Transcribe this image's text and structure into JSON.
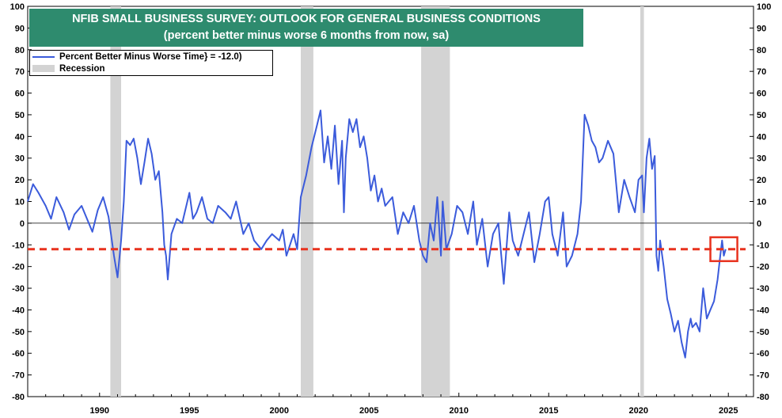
{
  "chart_data": {
    "type": "line",
    "title": "NFIB SMALL BUSINESS SURVEY: OUTLOOK FOR GENERAL BUSINESS CONDITIONS",
    "subtitle": "(percent better minus worse 6 months from now, sa)",
    "xlabel": "",
    "ylabel": "",
    "xlim": [
      1986,
      2026.4
    ],
    "ylim": [
      -80,
      100
    ],
    "y_ticks": [
      100,
      90,
      80,
      70,
      60,
      50,
      40,
      30,
      20,
      10,
      0,
      -10,
      -20,
      -30,
      -40,
      -50,
      -60,
      -70,
      -80
    ],
    "x_ticks": [
      1990,
      1995,
      2000,
      2005,
      2010,
      2015,
      2020,
      2025
    ],
    "legend": [
      {
        "label": "Percent Better Minus Worse Time} = -12.0)",
        "kind": "line",
        "color": "#3b5bdb"
      },
      {
        "label": "Recession",
        "kind": "shade",
        "color": "#d3d3d3"
      }
    ],
    "reference_line": {
      "y": -12.0,
      "color": "#e8321e",
      "style": "dashed"
    },
    "zero_line": {
      "y": 0
    },
    "highlight_box": {
      "x": [
        2024.0,
        2025.5
      ],
      "y": [
        -17.5,
        -6.5
      ],
      "color": "#e8321e"
    },
    "recessions": [
      [
        1990.6,
        1991.2
      ],
      [
        2001.2,
        2001.9
      ],
      [
        2007.9,
        2009.5
      ],
      [
        2020.1,
        2020.3
      ]
    ],
    "series": [
      {
        "name": "Percent Better Minus Worse Time} = -12.0)",
        "color": "#3b5bdb",
        "x": [
          1986.0,
          1986.3,
          1986.6,
          1987.0,
          1987.3,
          1987.6,
          1988.0,
          1988.3,
          1988.6,
          1989.0,
          1989.3,
          1989.6,
          1989.9,
          1990.2,
          1990.5,
          1990.8,
          1991.0,
          1991.2,
          1991.35,
          1991.5,
          1991.7,
          1991.9,
          1992.1,
          1992.3,
          1992.5,
          1992.7,
          1992.9,
          1993.1,
          1993.3,
          1993.5,
          1993.6,
          1993.7,
          1993.8,
          1994.0,
          1994.3,
          1994.6,
          1995.0,
          1995.2,
          1995.4,
          1995.7,
          1996.0,
          1996.3,
          1996.6,
          1997.0,
          1997.3,
          1997.6,
          1998.0,
          1998.3,
          1998.6,
          1999.0,
          1999.3,
          1999.6,
          2000.0,
          2000.2,
          2000.4,
          2000.6,
          2000.8,
          2001.0,
          2001.2,
          2001.5,
          2001.8,
          2002.1,
          2002.3,
          2002.5,
          2002.7,
          2002.9,
          2003.1,
          2003.3,
          2003.5,
          2003.6,
          2003.7,
          2003.9,
          2004.1,
          2004.3,
          2004.5,
          2004.7,
          2004.9,
          2005.1,
          2005.3,
          2005.5,
          2005.7,
          2005.9,
          2006.1,
          2006.3,
          2006.6,
          2006.9,
          2007.2,
          2007.5,
          2007.8,
          2008.0,
          2008.2,
          2008.4,
          2008.6,
          2008.8,
          2009.0,
          2009.1,
          2009.3,
          2009.6,
          2009.9,
          2010.2,
          2010.5,
          2010.8,
          2011.0,
          2011.3,
          2011.6,
          2011.9,
          2012.2,
          2012.5,
          2012.8,
          2013.0,
          2013.3,
          2013.6,
          2013.9,
          2014.2,
          2014.5,
          2014.8,
          2015.0,
          2015.2,
          2015.5,
          2015.8,
          2016.0,
          2016.3,
          2016.6,
          2016.8,
          2017.0,
          2017.2,
          2017.4,
          2017.6,
          2017.8,
          2018.0,
          2018.3,
          2018.6,
          2018.9,
          2019.2,
          2019.5,
          2019.8,
          2020.0,
          2020.2,
          2020.3,
          2020.45,
          2020.6,
          2020.75,
          2020.9,
          2021.0,
          2021.1,
          2021.2,
          2021.4,
          2021.6,
          2021.8,
          2022.0,
          2022.2,
          2022.4,
          2022.6,
          2022.75,
          2022.9,
          2023.0,
          2023.2,
          2023.4,
          2023.6,
          2023.8,
          2024.0,
          2024.2,
          2024.4,
          2024.55,
          2024.65,
          2024.75,
          2024.85
        ],
        "y": [
          10,
          18,
          14,
          8,
          2,
          12,
          5,
          -3,
          4,
          8,
          2,
          -4,
          6,
          12,
          3,
          -15,
          -25,
          -8,
          10,
          38,
          36,
          39,
          30,
          18,
          28,
          39,
          32,
          20,
          24,
          5,
          -10,
          -15,
          -26,
          -5,
          2,
          0,
          14,
          2,
          5,
          12,
          2,
          0,
          8,
          5,
          2,
          10,
          -5,
          0,
          -8,
          -12,
          -8,
          -5,
          -8,
          -3,
          -15,
          -10,
          -5,
          -12,
          12,
          22,
          35,
          45,
          52,
          28,
          40,
          25,
          45,
          18,
          38,
          5,
          30,
          48,
          42,
          48,
          35,
          40,
          30,
          15,
          22,
          10,
          16,
          8,
          10,
          12,
          -5,
          5,
          0,
          8,
          -8,
          -15,
          -18,
          0,
          -8,
          12,
          -15,
          10,
          -12,
          -5,
          8,
          5,
          -5,
          10,
          -10,
          2,
          -20,
          -5,
          0,
          -28,
          5,
          -8,
          -15,
          -5,
          5,
          -18,
          -5,
          10,
          12,
          -5,
          -15,
          5,
          -20,
          -15,
          -5,
          10,
          50,
          45,
          38,
          35,
          28,
          30,
          38,
          32,
          5,
          20,
          12,
          5,
          20,
          22,
          5,
          30,
          39,
          25,
          31,
          -15,
          -22,
          -8,
          -20,
          -35,
          -42,
          -50,
          -45,
          -55,
          -62,
          -50,
          -44,
          -48,
          -46,
          -50,
          -30,
          -44,
          -40,
          -36,
          -26,
          -15,
          -8,
          -15,
          -12
        ]
      }
    ]
  }
}
